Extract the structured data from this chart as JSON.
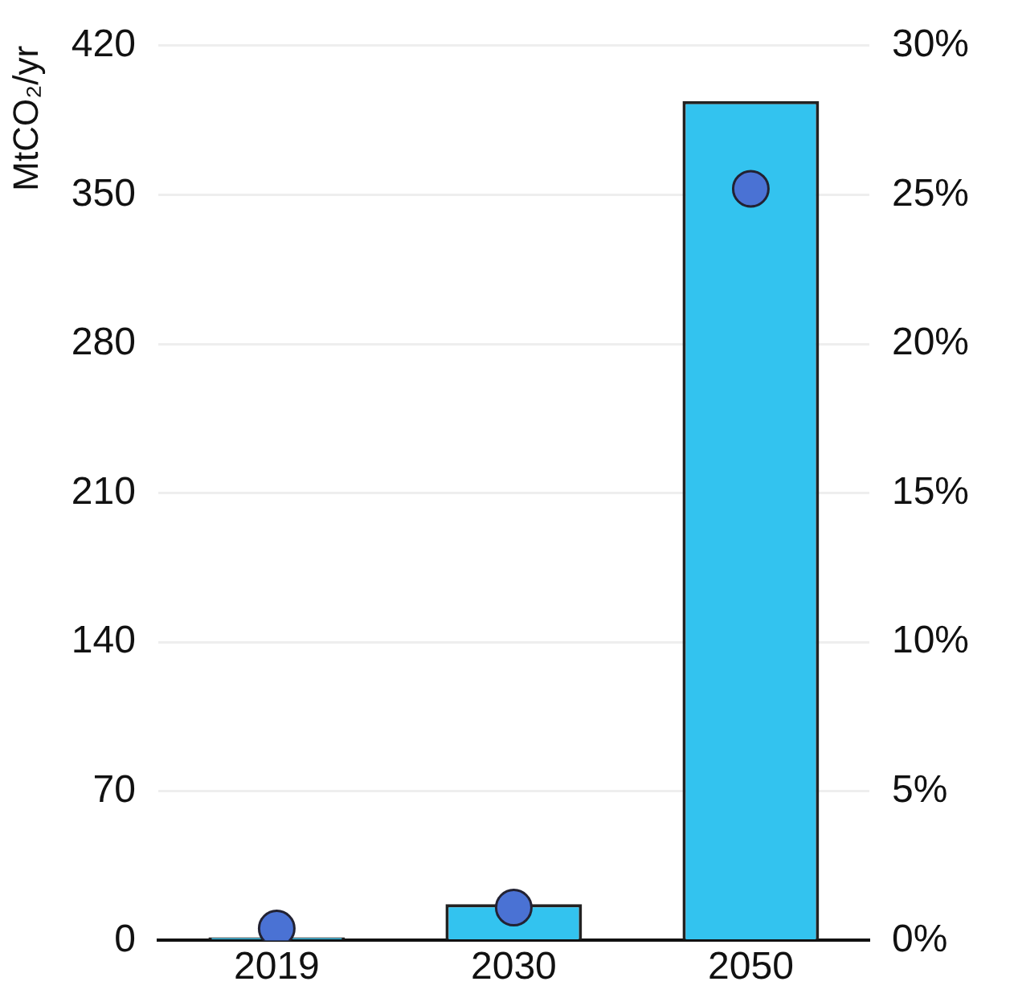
{
  "chart_data": {
    "type": "bar",
    "ylabel": "MtCO₂/yr",
    "categories": [
      "2019",
      "2030",
      "2050"
    ],
    "series": [
      {
        "color": "#33c3ef",
        "values": [
          1.5,
          17,
          394
        ]
      },
      {
        "type": "scatter",
        "axis": "y2",
        "color": "#4a72d4",
        "values": [
          0.4,
          1.1,
          25.2
        ]
      }
    ],
    "ylim": [
      0,
      420
    ],
    "yticks": [
      0,
      70,
      140,
      210,
      280,
      350,
      420
    ],
    "y2lim": [
      0,
      30
    ],
    "y2ticks": [
      {
        "value": 0,
        "label": "0%"
      },
      {
        "value": 5,
        "label": "5%"
      },
      {
        "value": 10,
        "label": "10%"
      },
      {
        "value": 15,
        "label": "15%"
      },
      {
        "value": 20,
        "label": "20%"
      },
      {
        "value": 25,
        "label": "25%"
      },
      {
        "value": 30,
        "label": "30%"
      }
    ],
    "grid": "y",
    "legend": false,
    "marker": "circle"
  }
}
